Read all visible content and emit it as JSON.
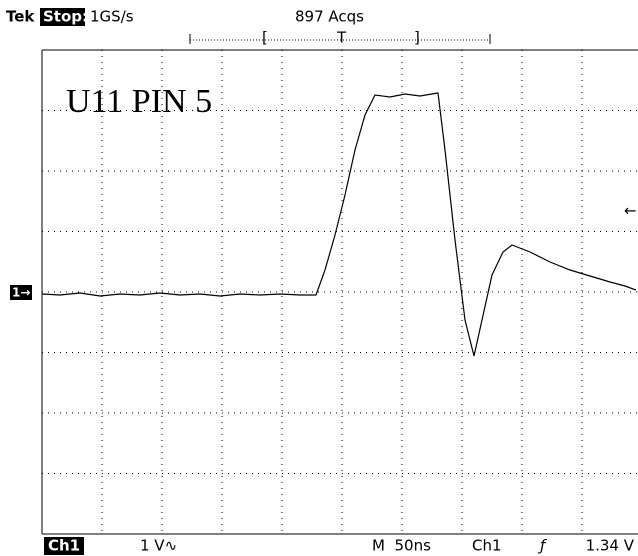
{
  "header": {
    "brand": "Tek",
    "state": "Stop:",
    "sample_rate": "1GS/s",
    "acquisitions": "897 Acqs",
    "trigger_position": {
      "left": "[",
      "center": "T",
      "right": "]"
    }
  },
  "screen": {
    "label": "U11 PIN 5",
    "channel_marker": "1→",
    "trigger_level_marker": "←"
  },
  "footer": {
    "channel": "Ch1",
    "scale": "1 V∿",
    "timebase": "M  50ns",
    "trigger_source": "Ch1",
    "trigger_slope": "ƒ",
    "trigger_level": "1.34 V"
  }
}
